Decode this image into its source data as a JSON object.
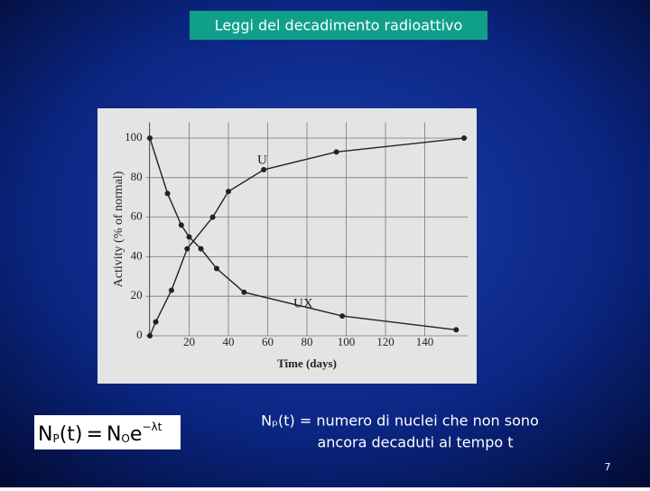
{
  "slide": {
    "title": "Leggi del decadimento radioattivo",
    "formula": {
      "n": "N",
      "p": "P",
      "arg": "(t)",
      "eq": "=",
      "n0": "N",
      "zero": "O",
      "e": "e",
      "exp": "−λt"
    },
    "caption": [
      "Nₚ(t) = numero di nuclei che non sono",
      "ancora decaduti al tempo t"
    ],
    "page": "7"
  },
  "chart_data": {
    "type": "line",
    "x_label": "Time (days)",
    "y_label": "Activity (% of normal)",
    "annotations": [
      "U",
      "UX"
    ],
    "xlim": [
      -2,
      162
    ],
    "ylim": [
      -8,
      108
    ],
    "xticks": [
      20,
      40,
      60,
      80,
      100,
      120,
      140
    ],
    "yticks": [
      0,
      20,
      40,
      60,
      80,
      100
    ],
    "grid": true,
    "series": [
      {
        "name": "UX",
        "color": "#222222",
        "x": [
          0,
          9,
          16,
          20,
          26,
          34,
          48,
          98,
          156
        ],
        "values": [
          100,
          72,
          56,
          50,
          44,
          34,
          22,
          10,
          3
        ]
      },
      {
        "name": "U",
        "color": "#222222",
        "x": [
          0,
          3,
          11,
          19,
          32,
          40,
          58,
          95,
          160
        ],
        "values": [
          0,
          7,
          23,
          44,
          60,
          73,
          84,
          93,
          100
        ]
      }
    ]
  }
}
